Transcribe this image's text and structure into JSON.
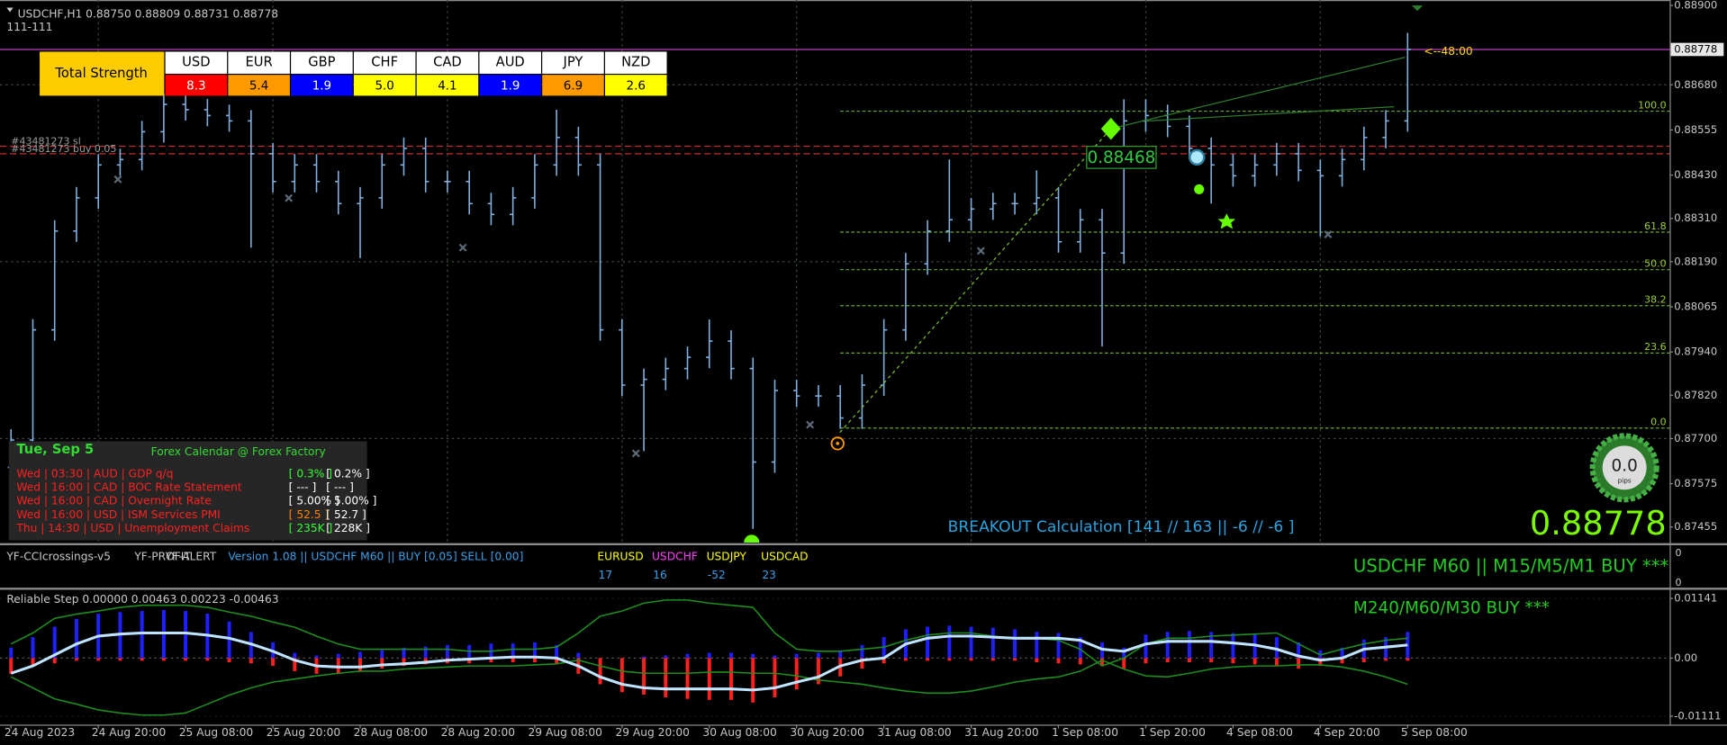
{
  "header": {
    "symbol_line": "USDCHF,H1  0.88750 0.88809 0.88731 0.88778",
    "sub": "111-111"
  },
  "strength_table": {
    "title": "Total Strength",
    "currencies": [
      {
        "name": "USD",
        "value": "8.3",
        "color": "#ff0000",
        "text_color": "#ffffff"
      },
      {
        "name": "EUR",
        "value": "5.4",
        "color": "#ff9900",
        "text_color": "#000000"
      },
      {
        "name": "GBP",
        "value": "1.9",
        "color": "#0000ff",
        "text_color": "#ffffff"
      },
      {
        "name": "CHF",
        "value": "5.0",
        "color": "#ffff00",
        "text_color": "#000000"
      },
      {
        "name": "CAD",
        "value": "4.1",
        "color": "#ffff00",
        "text_color": "#000000"
      },
      {
        "name": "AUD",
        "value": "1.9",
        "color": "#0000ff",
        "text_color": "#ffffff"
      },
      {
        "name": "JPY",
        "value": "6.9",
        "color": "#ff9900",
        "text_color": "#000000"
      },
      {
        "name": "NZD",
        "value": "2.6",
        "color": "#ffff00",
        "text_color": "#000000"
      }
    ]
  },
  "calendar": {
    "date": "Tue, Sep 5",
    "title": "Forex Calendar @ Forex Factory",
    "rows": [
      {
        "event": "Wed  |  03:30  |  AUD  |  GDP q/q",
        "actual": "[ 0.3% ]",
        "forecast": "[ 0.2% ]",
        "actual_color": "#33ff33"
      },
      {
        "event": "Wed  |  16:00  |  CAD  |  BOC Rate Statement",
        "actual": "[ --- ]",
        "forecast": "[ --- ]",
        "actual_color": "#ffffff"
      },
      {
        "event": "Wed  |  16:00  |  CAD  |  Overnight Rate",
        "actual": "[ 5.00% ]",
        "forecast": "[ 5.00% ]",
        "actual_color": "#ffffff"
      },
      {
        "event": "Wed  |  16:00  |  USD  |  ISM Services PMI",
        "actual": "[ 52.5 ]",
        "forecast": "[ 52.7 ]",
        "actual_color": "#ff8000"
      },
      {
        "event": "Thu  |  14:30  |  USD  |  Unemployment Claims",
        "actual": "[ 235K ]",
        "forecast": "[ 228K ]",
        "actual_color": "#33ff33"
      }
    ]
  },
  "annotations": {
    "timer": "<--48:00",
    "breakout_level": "0.88468",
    "breakout": "BREAKOUT Calculation [141 // 163  || -6 // -6 ]",
    "pips_value": "0.0",
    "pips_unit": "pips"
  },
  "cci_panel": {
    "indicators": [
      "YF-CCIcrossings-v5",
      "YF-PROFIT",
      "YF-ALERT"
    ],
    "version": "Version 1.08 || USDCHF M60 || BUY [0.05] SELL [0.00]",
    "pairs": [
      {
        "name": "USDCHF",
        "color": "#ff40ff",
        "value": 16
      },
      {
        "name": "EURUSD",
        "color": "#ffff00",
        "value": 17
      },
      {
        "name": "USDJPY",
        "color": "#ffff00",
        "value": -52
      },
      {
        "name": "USDCAD",
        "color": "#ffff00",
        "value": 23
      }
    ],
    "signal": "USDCHF M60 || M15/M5/M1 BUY ***",
    "axis_labels": [
      0,
      0
    ]
  },
  "chart_data": [
    {
      "type": "ohlc",
      "color": "#7fb0e0",
      "grid": true,
      "ylim": [
        0.87412,
        0.88915
      ],
      "yticks": [
        {
          "value": 0.889,
          "label": "0.88900"
        },
        {
          "value": 0.8868,
          "label": "0.88680"
        },
        {
          "value": 0.88555,
          "label": "0.88555"
        },
        {
          "value": 0.8843,
          "label": "0.88430"
        },
        {
          "value": 0.8831,
          "label": "0.88310"
        },
        {
          "value": 0.8819,
          "label": "0.88190"
        },
        {
          "value": 0.88065,
          "label": "0.88065"
        },
        {
          "value": 0.8794,
          "label": "0.87940"
        },
        {
          "value": 0.8782,
          "label": "0.87820"
        },
        {
          "value": 0.877,
          "label": "0.87700"
        },
        {
          "value": 0.87575,
          "label": "0.87575"
        },
        {
          "value": 0.87455,
          "label": "0.87455"
        }
      ],
      "current_price": {
        "value": 0.88778,
        "label": "0.88778"
      },
      "fib_levels": [
        {
          "label": "100.0",
          "value": 0.88607
        },
        {
          "label": "61.8",
          "value": 0.88272
        },
        {
          "label": "50.0",
          "value": 0.88168
        },
        {
          "label": "38.2",
          "value": 0.88068
        },
        {
          "label": "23.6",
          "value": 0.87937
        },
        {
          "label": "0.0",
          "value": 0.87729
        }
      ],
      "order_lines": [
        {
          "label": "#43481273 sl",
          "value": 0.8851,
          "color": "#c03030"
        },
        {
          "label": "#43481273 buy 0.05",
          "value": 0.88489,
          "color": "#c03030"
        }
      ],
      "categories": [
        "24 Aug 2023",
        null,
        null,
        null,
        "24 Aug 20:00",
        null,
        null,
        null,
        "25 Aug 08:00",
        null,
        null,
        null,
        "25 Aug 20:00",
        null,
        null,
        null,
        "28 Aug 08:00",
        null,
        null,
        null,
        "28 Aug 20:00",
        null,
        null,
        null,
        "29 Aug 08:00",
        null,
        null,
        null,
        "29 Aug 20:00",
        null,
        null,
        null,
        "30 Aug 08:00",
        null,
        null,
        null,
        "30 Aug 20:00",
        null,
        null,
        null,
        "31 Aug 08:00",
        null,
        null,
        null,
        "31 Aug 20:00",
        null,
        null,
        null,
        "1 Sep 08:00",
        null,
        null,
        null,
        "1 Sep 20:00",
        null,
        null,
        null,
        "4 Sep 08:00",
        null,
        null,
        null,
        "4 Sep 20:00",
        null,
        null,
        null,
        "5 Sep 08:00"
      ],
      "candles": [
        [
          0.8762,
          0.87726,
          0.8759,
          0.87696
        ],
        [
          0.87696,
          0.88031,
          0.87666,
          0.88001
        ],
        [
          0.88001,
          0.88305,
          0.87971,
          0.88275
        ],
        [
          0.88275,
          0.88397,
          0.88245,
          0.88367
        ],
        [
          0.88367,
          0.88488,
          0.88337,
          0.88458
        ],
        [
          0.88458,
          0.88503,
          0.88428,
          0.88473
        ],
        [
          0.88473,
          0.8858,
          0.88443,
          0.8855
        ],
        [
          0.8855,
          0.88656,
          0.8852,
          0.88626
        ],
        [
          0.88626,
          0.88656,
          0.88581,
          0.88611
        ],
        [
          0.88611,
          0.88641,
          0.88565,
          0.88595
        ],
        [
          0.88595,
          0.88625,
          0.8855,
          0.8858
        ],
        [
          0.8858,
          0.8861,
          0.88229,
          0.88489
        ],
        [
          0.88489,
          0.88519,
          0.88382,
          0.88412
        ],
        [
          0.88412,
          0.88488,
          0.88382,
          0.88458
        ],
        [
          0.88458,
          0.88488,
          0.88382,
          0.88412
        ],
        [
          0.88412,
          0.88442,
          0.88321,
          0.88351
        ],
        [
          0.88351,
          0.88397,
          0.882,
          0.88367
        ],
        [
          0.88367,
          0.88488,
          0.88337,
          0.88458
        ],
        [
          0.88458,
          0.88534,
          0.88428,
          0.88504
        ],
        [
          0.88504,
          0.88534,
          0.88382,
          0.88412
        ],
        [
          0.88412,
          0.88442,
          0.88382,
          0.88412
        ],
        [
          0.88412,
          0.88442,
          0.88321,
          0.88351
        ],
        [
          0.88351,
          0.88381,
          0.88291,
          0.88321
        ],
        [
          0.88321,
          0.88397,
          0.88291,
          0.88367
        ],
        [
          0.88367,
          0.88488,
          0.88337,
          0.88458
        ],
        [
          0.88458,
          0.88611,
          0.88428,
          0.88534
        ],
        [
          0.88534,
          0.88564,
          0.88428,
          0.88458
        ],
        [
          0.88458,
          0.88488,
          0.87971,
          0.88001
        ],
        [
          0.88001,
          0.88031,
          0.87818,
          0.87848
        ],
        [
          0.87848,
          0.87894,
          0.87665,
          0.87864
        ],
        [
          0.87864,
          0.87924,
          0.87834,
          0.87894
        ],
        [
          0.87894,
          0.87955,
          0.87864,
          0.87925
        ],
        [
          0.87925,
          0.8803,
          0.87895,
          0.8797
        ],
        [
          0.8797,
          0.88,
          0.87864,
          0.87894
        ],
        [
          0.87894,
          0.87924,
          0.8745,
          0.87635
        ],
        [
          0.87635,
          0.87863,
          0.87605,
          0.87833
        ],
        [
          0.87833,
          0.87863,
          0.87788,
          0.87818
        ],
        [
          0.87818,
          0.87848,
          0.87788,
          0.87818
        ],
        [
          0.87818,
          0.87848,
          0.87727,
          0.87757
        ],
        [
          0.87757,
          0.87878,
          0.87727,
          0.87848
        ],
        [
          0.87848,
          0.88031,
          0.87818,
          0.88001
        ],
        [
          0.88001,
          0.88214,
          0.87971,
          0.88184
        ],
        [
          0.88184,
          0.88305,
          0.88154,
          0.88275
        ],
        [
          0.88275,
          0.88473,
          0.88245,
          0.88306
        ],
        [
          0.88306,
          0.88366,
          0.88276,
          0.88336
        ],
        [
          0.88336,
          0.88381,
          0.88306,
          0.88351
        ],
        [
          0.88351,
          0.88381,
          0.88321,
          0.88351
        ],
        [
          0.88351,
          0.88443,
          0.88321,
          0.88367
        ],
        [
          0.88367,
          0.88397,
          0.88215,
          0.88245
        ],
        [
          0.88245,
          0.88336,
          0.88215,
          0.88306
        ],
        [
          0.88306,
          0.88336,
          0.87955,
          0.88214
        ],
        [
          0.88214,
          0.8864,
          0.88184,
          0.8858
        ],
        [
          0.8858,
          0.8864,
          0.8855,
          0.88595
        ],
        [
          0.88595,
          0.88625,
          0.88535,
          0.88565
        ],
        [
          0.88565,
          0.88595,
          0.88474,
          0.88504
        ],
        [
          0.88504,
          0.88534,
          0.88351,
          0.88458
        ],
        [
          0.88458,
          0.88488,
          0.88398,
          0.88428
        ],
        [
          0.88428,
          0.88488,
          0.88398,
          0.88458
        ],
        [
          0.88458,
          0.88519,
          0.88428,
          0.88489
        ],
        [
          0.88489,
          0.88519,
          0.88413,
          0.88443
        ],
        [
          0.88443,
          0.88473,
          0.8826,
          0.88428
        ],
        [
          0.88428,
          0.88503,
          0.88398,
          0.88473
        ],
        [
          0.88473,
          0.88564,
          0.88443,
          0.88534
        ],
        [
          0.88534,
          0.8861,
          0.88504,
          0.8858
        ],
        [
          0.8858,
          0.88824,
          0.8855,
          0.88778
        ]
      ]
    },
    {
      "type": "step-oscillator",
      "title": "Reliable Step 0.00000 0.00463 0.00223 -0.00463",
      "signal": "M240/M60/M30 BUY ***",
      "ylim": [
        -0.01262,
        0.01284
      ],
      "yticks": [
        0.01141,
        {
          "value": 0,
          "label": "0.00"
        },
        -0.01111
      ],
      "series": [
        {
          "style": "bar",
          "color": "#1f1fff",
          "values": [
            0.002,
            0.004,
            0.006,
            0.0075,
            0.0085,
            0.0088,
            0.009,
            0.0092,
            0.009,
            0.0085,
            0.007,
            0.005,
            0.003,
            0.001,
            0.0005,
            0.0008,
            0.0012,
            0.0015,
            0.002,
            0.0022,
            0.0025,
            0.0025,
            0.0028,
            0.0028,
            0.003,
            0.0025,
            0.001,
            0,
            0,
            0.0003,
            0.0005,
            0.0008,
            0.001,
            0.001,
            0.0008,
            0.0005,
            0.0008,
            0.001,
            0.0015,
            0.0025,
            0.004,
            0.0055,
            0.006,
            0.0062,
            0.006,
            0.0058,
            0.0055,
            0.005,
            0.0048,
            0.004,
            0.003,
            0.002,
            0.0045,
            0.005,
            0.0052,
            0.005,
            0.0048,
            0.0045,
            0.004,
            0.003,
            0.0015,
            0.002,
            0.0035,
            0.004,
            0.005
          ]
        },
        {
          "style": "bar",
          "color": "#ff2020",
          "values": [
            -0.003,
            -0.0015,
            -0.001,
            -0.0005,
            -0.0005,
            -0.0005,
            -0.0005,
            -0.0005,
            -0.0005,
            -0.0005,
            -0.0008,
            -0.001,
            -0.0015,
            -0.0025,
            -0.003,
            -0.003,
            -0.0025,
            -0.002,
            -0.0015,
            -0.0012,
            -0.001,
            -0.001,
            -0.0008,
            -0.0008,
            -0.0008,
            -0.001,
            -0.003,
            -0.005,
            -0.0065,
            -0.007,
            -0.0075,
            -0.0078,
            -0.008,
            -0.008,
            -0.0085,
            -0.0075,
            -0.006,
            -0.005,
            -0.0035,
            -0.002,
            -0.001,
            -0.0005,
            -0.0005,
            -0.0005,
            -0.0005,
            -0.0005,
            -0.0005,
            -0.0008,
            -0.001,
            -0.0012,
            -0.0015,
            -0.002,
            -0.001,
            -0.0008,
            -0.0008,
            -0.0008,
            -0.001,
            -0.0012,
            -0.0015,
            -0.002,
            -0.0015,
            -0.001,
            -0.0008,
            -0.0005,
            -0.0005
          ]
        },
        {
          "style": "line",
          "color": "#1e8c1e",
          "values": [
            0.0027,
            0.0048,
            0.0076,
            0.0084,
            0.009,
            0.0097,
            0.0101,
            0.0101,
            0.0101,
            0.0097,
            0.0088,
            0.008,
            0.0069,
            0.0059,
            0.0042,
            0.0027,
            0.0017,
            0.0017,
            0.0017,
            0.0017,
            0.0017,
            0.0013,
            0.0013,
            0.0017,
            0.0017,
            0.0021,
            0.0048,
            0.008,
            0.009,
            0.0105,
            0.0111,
            0.0111,
            0.0105,
            0.0101,
            0.0097,
            0.0048,
            0.0017,
            0.0013,
            0.0013,
            0.0017,
            0.0021,
            0.0034,
            0.0044,
            0.0048,
            0.0048,
            0.0042,
            0.0038,
            0.0038,
            0.0034,
            0.0017,
            -0.0015,
            0,
            0.0027,
            0.0038,
            0.0038,
            0.0042,
            0.0044,
            0.0046,
            0.0048,
            0.0027,
            0.0006,
            0.0017,
            0.0027,
            0.0034,
            0.0038
          ]
        },
        {
          "style": "line",
          "color": "#1e8c1e",
          "values": [
            -0.0036,
            -0.0057,
            -0.0078,
            -0.0088,
            -0.0099,
            -0.0105,
            -0.0109,
            -0.0109,
            -0.0105,
            -0.0088,
            -0.0071,
            -0.0057,
            -0.0046,
            -0.004,
            -0.0034,
            -0.0029,
            -0.0025,
            -0.0025,
            -0.0021,
            -0.0019,
            -0.0017,
            -0.0015,
            -0.0015,
            -0.0015,
            -0.0013,
            -0.0011,
            -0.0004,
            -0.0015,
            -0.0025,
            -0.0029,
            -0.0029,
            -0.0029,
            -0.0027,
            -0.0027,
            -0.0029,
            -0.0029,
            -0.0034,
            -0.0042,
            -0.0046,
            -0.005,
            -0.0057,
            -0.0063,
            -0.0067,
            -0.0067,
            -0.0063,
            -0.0055,
            -0.0046,
            -0.004,
            -0.0036,
            -0.0025,
            -0.0004,
            -0.0021,
            -0.0034,
            -0.0036,
            -0.0029,
            -0.0021,
            -0.0017,
            -0.0015,
            -0.0015,
            -0.0013,
            -0.0013,
            -0.0017,
            -0.0025,
            -0.0036,
            -0.005
          ]
        },
        {
          "style": "line",
          "color": "#bfe4ff",
          "width": 2.5,
          "values": [
            -0.0029,
            -0.0015,
            0.0006,
            0.0027,
            0.0042,
            0.0046,
            0.0048,
            0.0048,
            0.0048,
            0.0044,
            0.0038,
            0.0027,
            0.0013,
            -0.0004,
            -0.0015,
            -0.0017,
            -0.0017,
            -0.0013,
            -0.0011,
            -0.0008,
            -0.0004,
            -0.0002,
            0,
            0.0002,
            0.0002,
            0,
            -0.0015,
            -0.0036,
            -0.005,
            -0.0057,
            -0.0059,
            -0.0059,
            -0.0059,
            -0.0059,
            -0.0061,
            -0.0057,
            -0.0046,
            -0.0036,
            -0.0015,
            -0.0004,
            0,
            0.0027,
            0.0038,
            0.0042,
            0.0042,
            0.004,
            0.0038,
            0.0038,
            0.0038,
            0.0034,
            0.0017,
            0.0013,
            0.0027,
            0.0032,
            0.0032,
            0.0032,
            0.0029,
            0.0025,
            0.0017,
            0.0004,
            -0.0004,
            0,
            0.0017,
            0.0021,
            0.0025
          ]
        }
      ]
    }
  ]
}
